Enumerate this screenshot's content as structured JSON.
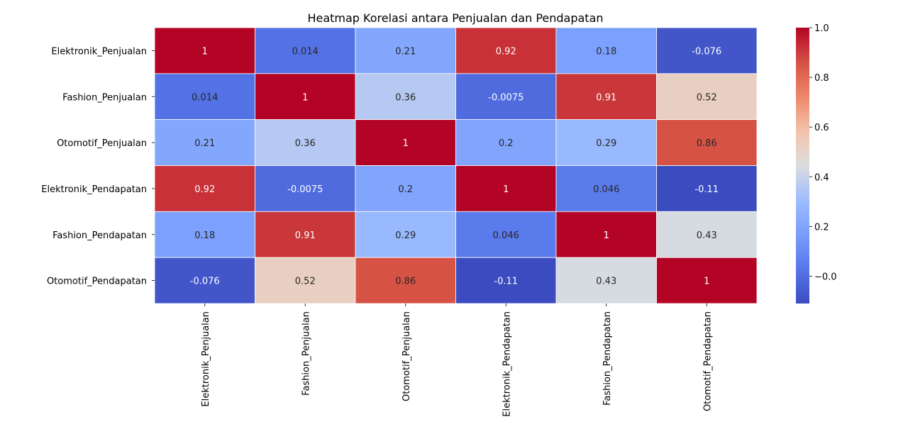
{
  "chart_data": {
    "type": "heatmap",
    "title": "Heatmap Korelasi antara Penjualan dan Pendapatan",
    "rows": [
      "Elektronik_Penjualan",
      "Fashion_Penjualan",
      "Otomotif_Penjualan",
      "Elektronik_Pendapatan",
      "Fashion_Pendapatan",
      "Otomotif_Pendapatan"
    ],
    "columns": [
      "Elektronik_Penjualan",
      "Fashion_Penjualan",
      "Otomotif_Penjualan",
      "Elektronik_Pendapatan",
      "Fashion_Pendapatan",
      "Otomotif_Pendapatan"
    ],
    "values": [
      [
        1,
        0.014,
        0.21,
        0.92,
        0.18,
        -0.076
      ],
      [
        0.014,
        1,
        0.36,
        -0.0075,
        0.91,
        0.52
      ],
      [
        0.21,
        0.36,
        1,
        0.2,
        0.29,
        0.86
      ],
      [
        0.92,
        -0.0075,
        0.2,
        1,
        0.046,
        -0.11
      ],
      [
        0.18,
        0.91,
        0.29,
        0.046,
        1,
        0.43
      ],
      [
        -0.076,
        0.52,
        0.86,
        -0.11,
        0.43,
        1
      ]
    ],
    "labels": [
      [
        "1",
        "0.014",
        "0.21",
        "0.92",
        "0.18",
        "-0.076"
      ],
      [
        "0.014",
        "1",
        "0.36",
        "-0.0075",
        "0.91",
        "0.52"
      ],
      [
        "0.21",
        "0.36",
        "1",
        "0.2",
        "0.29",
        "0.86"
      ],
      [
        "0.92",
        "-0.0075",
        "0.2",
        "1",
        "0.046",
        "-0.11"
      ],
      [
        "0.18",
        "0.91",
        "0.29",
        "0.046",
        "1",
        "0.43"
      ],
      [
        "-0.076",
        "0.52",
        "0.86",
        "-0.11",
        "0.43",
        "1"
      ]
    ],
    "colormap": "coolwarm",
    "colorbar": {
      "range": [
        -0.11,
        1.0
      ],
      "ticks": [
        -0.0,
        0.2,
        0.4,
        0.6,
        0.8,
        1.0
      ],
      "tick_labels": [
        "−0.0",
        "0.2",
        "0.4",
        "0.6",
        "0.8",
        "1.0"
      ]
    },
    "xlabel": "",
    "ylabel": "",
    "grid": false
  }
}
